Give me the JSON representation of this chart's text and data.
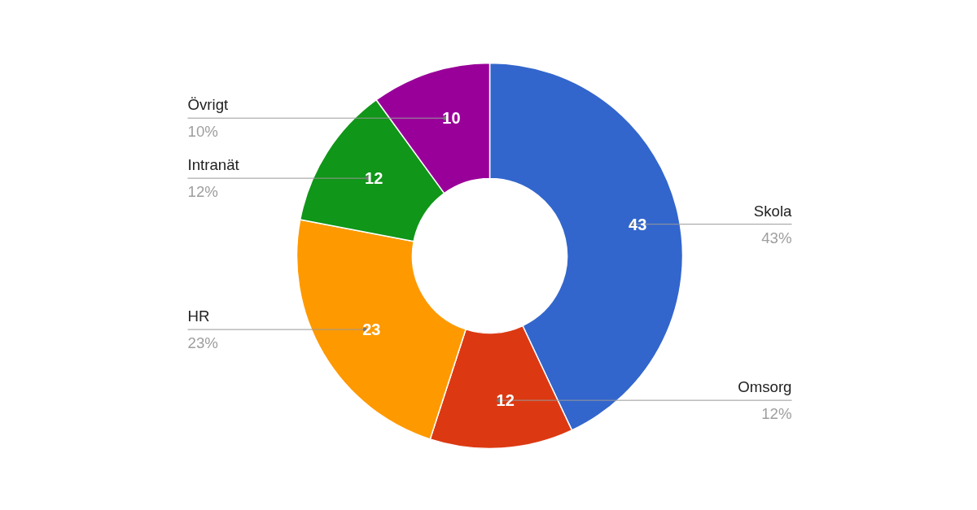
{
  "chart_data": {
    "type": "donut",
    "categories": [
      "Skola",
      "Omsorg",
      "HR",
      "Intranät",
      "Övrigt"
    ],
    "values": [
      43,
      12,
      23,
      12,
      10
    ],
    "colors": [
      "#3366cc",
      "#dc3912",
      "#ff9900",
      "#109618",
      "#990099"
    ],
    "annotations": [
      "43%",
      "12%",
      "23%",
      "12%",
      "10%"
    ],
    "data_labels": true
  }
}
